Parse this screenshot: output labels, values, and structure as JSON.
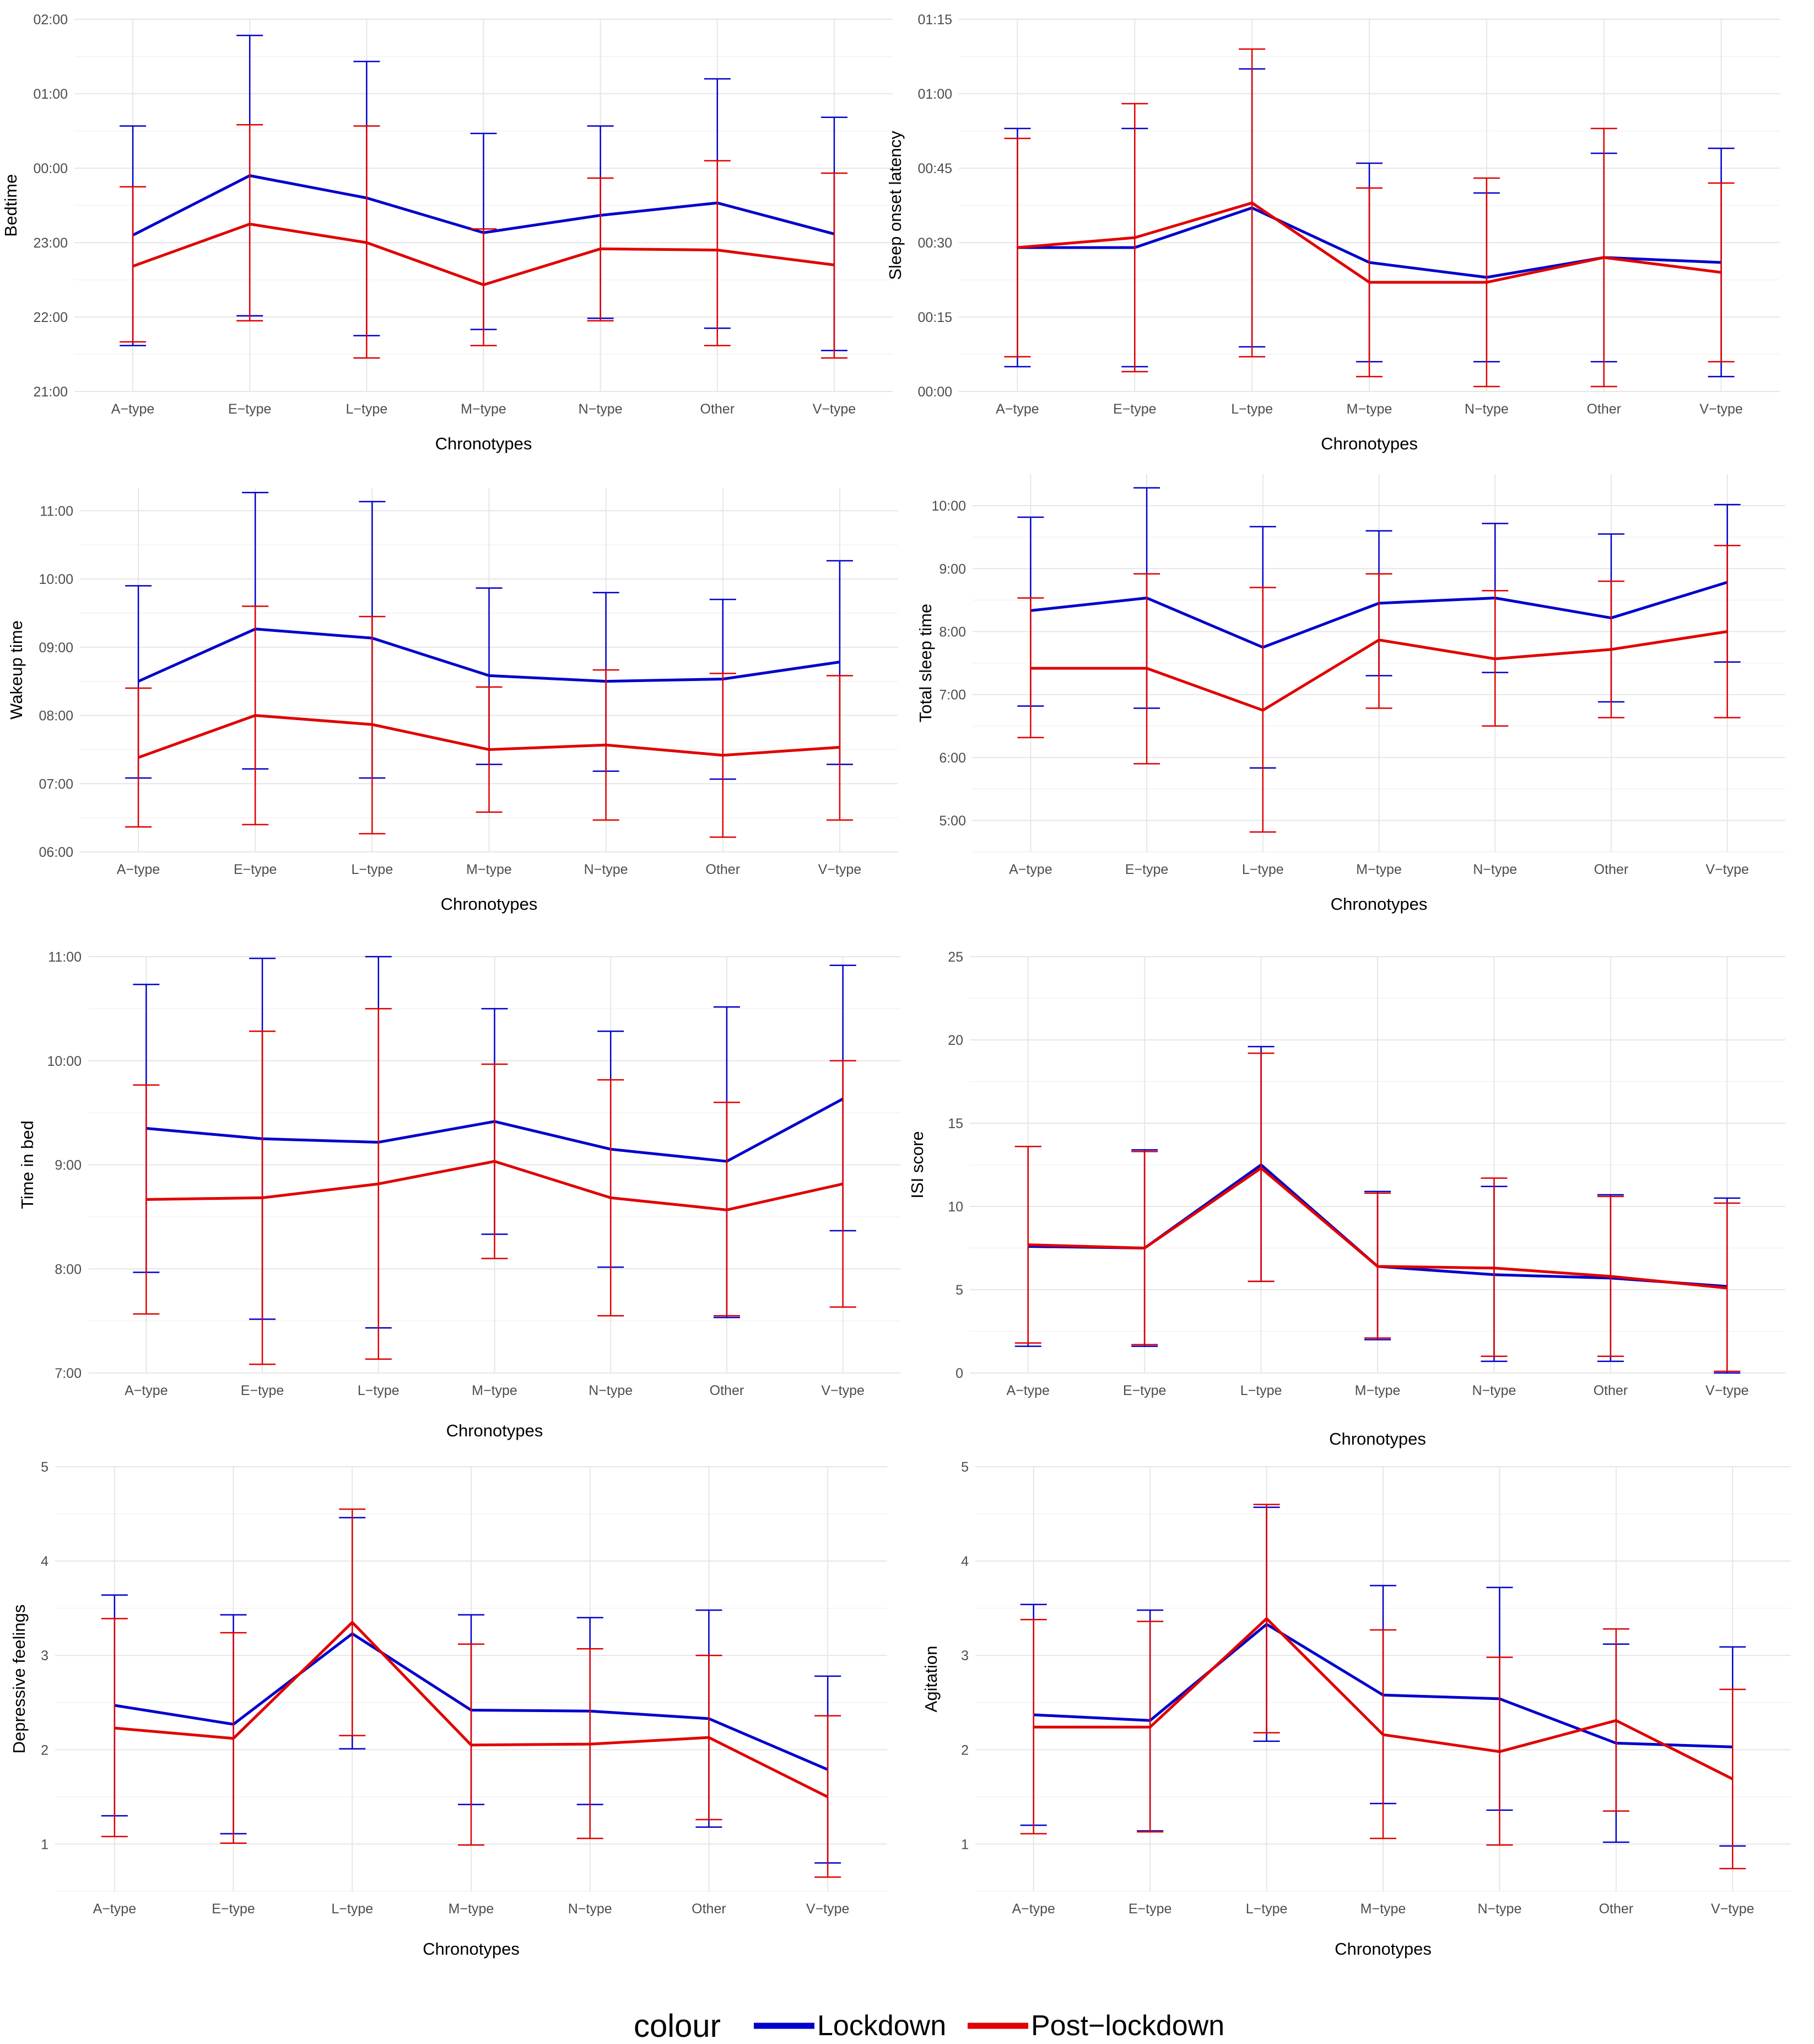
{
  "colors": {
    "lockdown": "#0000cc",
    "post_lockdown": "#e00000"
  },
  "legend": {
    "title": "colour",
    "items": [
      {
        "label": "Lockdown",
        "color": "#0000cc"
      },
      {
        "label": "Post−lockdown",
        "color": "#e00000"
      }
    ]
  },
  "chart_data": [
    {
      "id": "bedtime",
      "type": "line",
      "categories": [
        "A−type",
        "E−type",
        "L−type",
        "M−type",
        "N−type",
        "Other",
        "V−type"
      ],
      "xlabel": "Chronotypes",
      "ylabel": "Bedtime",
      "ylim": [
        1260,
        1560
      ],
      "yticks": [
        1260,
        1320,
        1380,
        1440,
        1500,
        1560
      ],
      "ytick_labels": [
        "21:00",
        "22:00",
        "23:00",
        "00:00",
        "01:00",
        "02:00"
      ],
      "series": [
        {
          "name": "Lockdown",
          "values": [
            1386,
            1434,
            1416,
            1388,
            1402,
            1412,
            1387
          ],
          "lower": [
            1297,
            1321,
            1305,
            1310,
            1319,
            1311,
            1293
          ],
          "upper": [
            1474,
            1547,
            1526,
            1468,
            1474,
            1512,
            1481
          ]
        },
        {
          "name": "Post−lockdown",
          "values": [
            1361,
            1395,
            1380,
            1346,
            1375,
            1374,
            1362
          ],
          "lower": [
            1300,
            1317,
            1287,
            1297,
            1317,
            1297,
            1287
          ],
          "upper": [
            1425,
            1475,
            1474,
            1391,
            1432,
            1446,
            1436
          ]
        }
      ]
    },
    {
      "id": "sleep_onset_latency",
      "type": "line",
      "categories": [
        "A−type",
        "E−type",
        "L−type",
        "M−type",
        "N−type",
        "Other",
        "V−type"
      ],
      "xlabel": "Chronotypes",
      "ylabel": "Sleep onset latency",
      "ylim": [
        0,
        75
      ],
      "yticks": [
        0,
        15,
        30,
        45,
        60,
        75
      ],
      "ytick_labels": [
        "00:00",
        "00:15",
        "00:30",
        "00:45",
        "01:00",
        "01:15"
      ],
      "series": [
        {
          "name": "Lockdown",
          "values": [
            29,
            29,
            37,
            26,
            23,
            27,
            26
          ],
          "lower": [
            5,
            5,
            9,
            6,
            6,
            6,
            3
          ],
          "upper": [
            53,
            53,
            65,
            46,
            40,
            48,
            49
          ]
        },
        {
          "name": "Post−lockdown",
          "values": [
            29,
            31,
            38,
            22,
            22,
            27,
            24
          ],
          "lower": [
            7,
            4,
            7,
            3,
            1,
            1,
            6
          ],
          "upper": [
            51,
            58,
            69,
            41,
            43,
            53,
            42
          ]
        }
      ]
    },
    {
      "id": "wakeup_time",
      "type": "line",
      "categories": [
        "A−type",
        "E−type",
        "L−type",
        "M−type",
        "N−type",
        "Other",
        "V−type"
      ],
      "xlabel": "Chronotypes",
      "ylabel": "Wakeup time",
      "ylim": [
        360,
        680
      ],
      "yticks": [
        360,
        420,
        480,
        540,
        600,
        660
      ],
      "ytick_labels": [
        "06:00",
        "07:00",
        "08:00",
        "09:00",
        "10:00",
        "11:00"
      ],
      "series": [
        {
          "name": "Lockdown",
          "values": [
            510,
            556,
            548,
            515,
            510,
            512,
            527
          ],
          "lower": [
            425,
            433,
            425,
            437,
            431,
            424,
            437
          ],
          "upper": [
            594,
            676,
            668,
            592,
            588,
            582,
            616
          ]
        },
        {
          "name": "Post−lockdown",
          "values": [
            443,
            480,
            472,
            450,
            454,
            445,
            452
          ],
          "lower": [
            382,
            384,
            376,
            395,
            388,
            373,
            388
          ],
          "upper": [
            504,
            576,
            567,
            505,
            520,
            517,
            515
          ]
        }
      ]
    },
    {
      "id": "total_sleep_time",
      "type": "line",
      "categories": [
        "A−type",
        "E−type",
        "L−type",
        "M−type",
        "N−type",
        "Other",
        "V−type"
      ],
      "xlabel": "Chronotypes",
      "ylabel": "Total sleep time",
      "ylim": [
        270,
        630
      ],
      "yticks": [
        300,
        360,
        420,
        480,
        540,
        600
      ],
      "ytick_labels": [
        "5:00",
        "6:00",
        "7:00",
        "8:00",
        "9:00",
        "10:00"
      ],
      "series": [
        {
          "name": "Lockdown",
          "values": [
            500,
            512,
            465,
            507,
            512,
            493,
            527
          ],
          "lower": [
            409,
            407,
            350,
            438,
            441,
            413,
            451
          ],
          "upper": [
            589,
            617,
            580,
            576,
            583,
            573,
            601
          ]
        },
        {
          "name": "Post−lockdown",
          "values": [
            445,
            445,
            405,
            472,
            454,
            463,
            480
          ],
          "lower": [
            379,
            354,
            289,
            407,
            390,
            398,
            398
          ],
          "upper": [
            512,
            535,
            522,
            535,
            519,
            528,
            562
          ]
        }
      ]
    },
    {
      "id": "time_in_bed",
      "type": "line",
      "categories": [
        "A−type",
        "E−type",
        "L−type",
        "M−type",
        "N−type",
        "Other",
        "V−type"
      ],
      "xlabel": "Chronotypes",
      "ylabel": "Time in bed",
      "ylim": [
        420,
        660
      ],
      "yticks": [
        420,
        480,
        540,
        600,
        660
      ],
      "ytick_labels": [
        "7:00",
        "8:00",
        "9:00",
        "10:00",
        "11:00"
      ],
      "series": [
        {
          "name": "Lockdown",
          "values": [
            561,
            555,
            553,
            565,
            549,
            542,
            578
          ],
          "lower": [
            478,
            451,
            446,
            500,
            481,
            452,
            502
          ],
          "upper": [
            644,
            659,
            660,
            630,
            617,
            631,
            655
          ]
        },
        {
          "name": "Post−lockdown",
          "values": [
            520,
            521,
            529,
            542,
            521,
            514,
            529
          ],
          "lower": [
            454,
            425,
            428,
            486,
            453,
            453,
            458
          ],
          "upper": [
            586,
            617,
            630,
            598,
            589,
            576,
            600
          ]
        }
      ]
    },
    {
      "id": "isi_score",
      "type": "line",
      "categories": [
        "A−type",
        "E−type",
        "L−type",
        "M−type",
        "N−type",
        "Other",
        "V−type"
      ],
      "xlabel": "Chronotypes",
      "ylabel": "ISI score",
      "ylim": [
        0,
        25
      ],
      "yticks": [
        0,
        5,
        10,
        15,
        20,
        25
      ],
      "ytick_labels": [
        "0",
        "5",
        "10",
        "15",
        "20",
        "25"
      ],
      "series": [
        {
          "name": "Lockdown",
          "values": [
            7.6,
            7.5,
            12.5,
            6.4,
            5.9,
            5.7,
            5.2
          ],
          "lower": [
            1.6,
            1.6,
            5.5,
            2.0,
            0.7,
            0.7,
            0.0
          ],
          "upper": [
            13.6,
            13.4,
            19.6,
            10.9,
            11.2,
            10.7,
            10.5
          ]
        },
        {
          "name": "Post−lockdown",
          "values": [
            7.7,
            7.5,
            12.3,
            6.4,
            6.3,
            5.8,
            5.1
          ],
          "lower": [
            1.8,
            1.7,
            5.5,
            2.1,
            1.0,
            1.0,
            0.1
          ],
          "upper": [
            13.6,
            13.3,
            19.2,
            10.8,
            11.7,
            10.6,
            10.2
          ]
        }
      ]
    },
    {
      "id": "depressive_feelings",
      "type": "line",
      "categories": [
        "A−type",
        "E−type",
        "L−type",
        "M−type",
        "N−type",
        "Other",
        "V−type"
      ],
      "xlabel": "Chronotypes",
      "ylabel": "Depressive feelings",
      "ylim": [
        0.5,
        5
      ],
      "yticks": [
        1,
        2,
        3,
        4,
        5
      ],
      "ytick_labels": [
        "1",
        "2",
        "3",
        "4",
        "5"
      ],
      "series": [
        {
          "name": "Lockdown",
          "values": [
            2.47,
            2.27,
            3.23,
            2.42,
            2.41,
            2.33,
            1.79
          ],
          "lower": [
            1.3,
            1.11,
            2.01,
            1.42,
            1.42,
            1.18,
            0.8
          ],
          "upper": [
            3.64,
            3.43,
            4.46,
            3.43,
            3.4,
            3.48,
            2.78
          ]
        },
        {
          "name": "Post−lockdown",
          "values": [
            2.23,
            2.12,
            3.35,
            2.05,
            2.06,
            2.13,
            1.5
          ],
          "lower": [
            1.08,
            1.01,
            2.15,
            0.99,
            1.06,
            1.26,
            0.65
          ],
          "upper": [
            3.39,
            3.24,
            4.55,
            3.12,
            3.07,
            3.0,
            2.36
          ]
        }
      ]
    },
    {
      "id": "agitation",
      "type": "line",
      "categories": [
        "A−type",
        "E−type",
        "L−type",
        "M−type",
        "N−type",
        "Other",
        "V−type"
      ],
      "xlabel": "Chronotypes",
      "ylabel": "Agitation",
      "ylim": [
        0.5,
        5
      ],
      "yticks": [
        1,
        2,
        3,
        4,
        5
      ],
      "ytick_labels": [
        "1",
        "2",
        "3",
        "4",
        "5"
      ],
      "series": [
        {
          "name": "Lockdown",
          "values": [
            2.37,
            2.31,
            3.33,
            2.58,
            2.54,
            2.07,
            2.03
          ],
          "lower": [
            1.2,
            1.14,
            2.09,
            1.43,
            1.36,
            1.02,
            0.98
          ],
          "upper": [
            3.54,
            3.48,
            4.57,
            3.74,
            3.72,
            3.12,
            3.09
          ]
        },
        {
          "name": "Post−lockdown",
          "values": [
            2.24,
            2.24,
            3.39,
            2.16,
            1.98,
            2.31,
            1.69
          ],
          "lower": [
            1.11,
            1.13,
            2.18,
            1.06,
            0.99,
            1.35,
            0.74
          ],
          "upper": [
            3.38,
            3.36,
            4.6,
            3.27,
            2.98,
            3.28,
            2.64
          ]
        }
      ]
    }
  ]
}
